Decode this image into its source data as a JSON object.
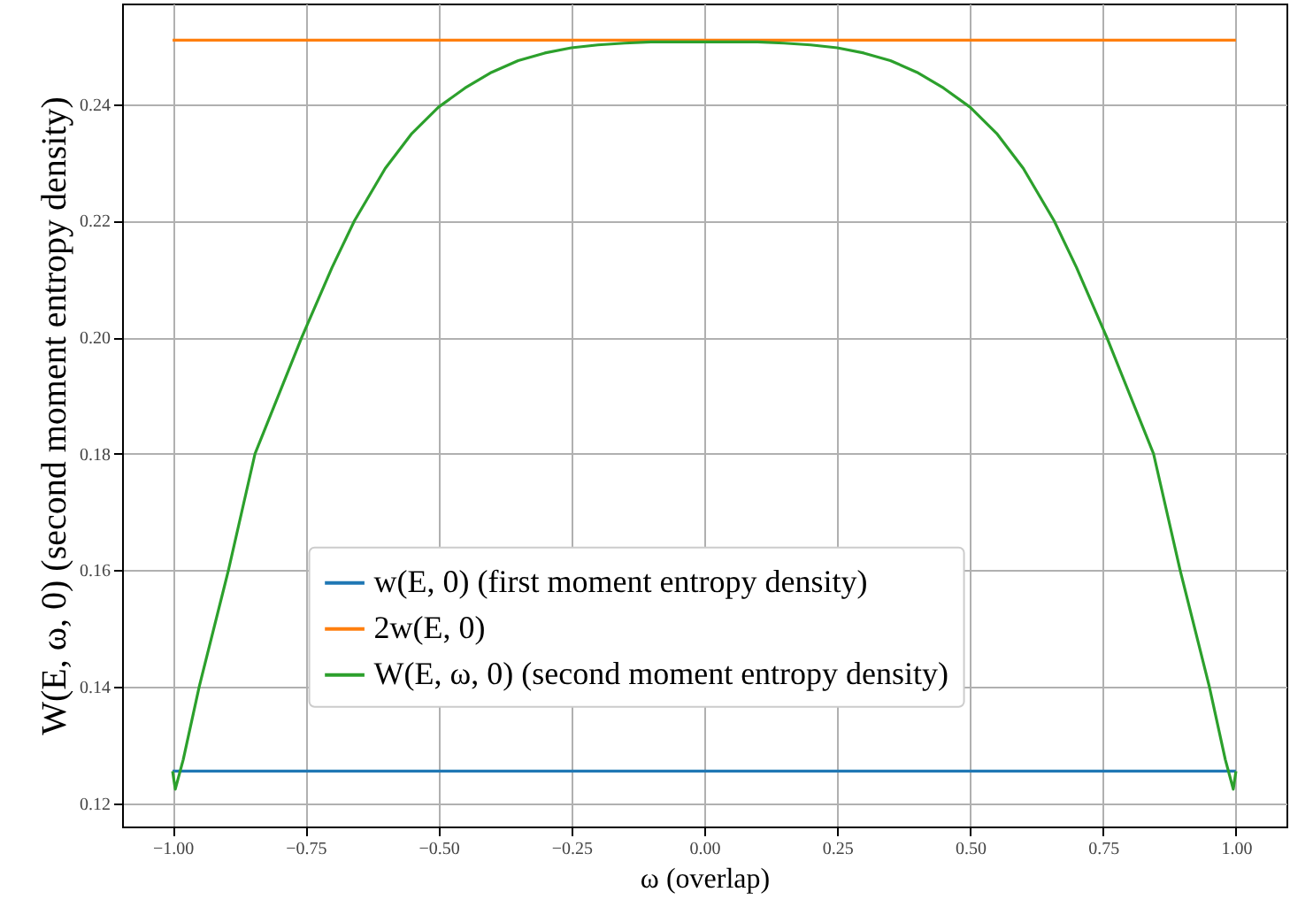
{
  "chart_data": {
    "type": "line",
    "xlabel": "ω (overlap)",
    "ylabel": "W(E, ω, 0) (second moment entropy density)",
    "xlim": [
      -1.095,
      1.095
    ],
    "ylim": [
      0.116,
      0.2573
    ],
    "xticks": [
      {
        "value": -1,
        "label": "−1.00"
      },
      {
        "value": -0.75,
        "label": "−0.75"
      },
      {
        "value": -0.5,
        "label": "−0.50"
      },
      {
        "value": -0.25,
        "label": "−0.25"
      },
      {
        "value": 0,
        "label": "0.00"
      },
      {
        "value": 0.25,
        "label": "0.25"
      },
      {
        "value": 0.5,
        "label": "0.50"
      },
      {
        "value": 0.75,
        "label": "0.75"
      },
      {
        "value": 1,
        "label": "1.00"
      }
    ],
    "yticks": [
      {
        "value": 0.12,
        "label": "0.12"
      },
      {
        "value": 0.14,
        "label": "0.14"
      },
      {
        "value": 0.16,
        "label": "0.16"
      },
      {
        "value": 0.18,
        "label": "0.18"
      },
      {
        "value": 0.2,
        "label": "0.20"
      },
      {
        "value": 0.22,
        "label": "0.22"
      },
      {
        "value": 0.24,
        "label": "0.24"
      }
    ],
    "grid": true,
    "legend": "bottom",
    "series": [
      {
        "name": "w(E, 0) (first moment entropy density)",
        "color": "#1f77b4",
        "x": [
          -1,
          1
        ],
        "values": [
          0.1255,
          0.1255
        ]
      },
      {
        "name": "2w(E, 0)",
        "color": "#ff7f0e",
        "x": [
          -1,
          1
        ],
        "values": [
          0.251,
          0.251
        ]
      },
      {
        "name": "W(E, ω, 0) (second moment entropy density)",
        "color": "#2ca02c",
        "x": [
          -1,
          -0.995,
          -0.98,
          -0.95,
          -0.895,
          -0.845,
          -0.757,
          -0.7,
          -0.658,
          -0.6,
          -0.55,
          -0.5,
          -0.45,
          -0.4,
          -0.35,
          -0.3,
          -0.25,
          -0.2,
          -0.15,
          -0.1,
          0,
          0.1,
          0.15,
          0.2,
          0.25,
          0.3,
          0.35,
          0.4,
          0.45,
          0.5,
          0.55,
          0.6,
          0.658,
          0.7,
          0.757,
          0.845,
          0.895,
          0.95,
          0.98,
          0.995,
          1
        ],
        "values": [
          0.1255,
          0.1224,
          0.1275,
          0.14,
          0.16,
          0.18,
          0.2,
          0.212,
          0.22,
          0.229,
          0.235,
          0.2395,
          0.2428,
          0.2455,
          0.2475,
          0.2488,
          0.2497,
          0.2502,
          0.2505,
          0.2507,
          0.2507,
          0.2507,
          0.2505,
          0.2502,
          0.2497,
          0.2488,
          0.2475,
          0.2455,
          0.2428,
          0.2395,
          0.235,
          0.229,
          0.22,
          0.212,
          0.2,
          0.18,
          0.16,
          0.14,
          0.1275,
          0.1224,
          0.1255
        ]
      }
    ]
  }
}
